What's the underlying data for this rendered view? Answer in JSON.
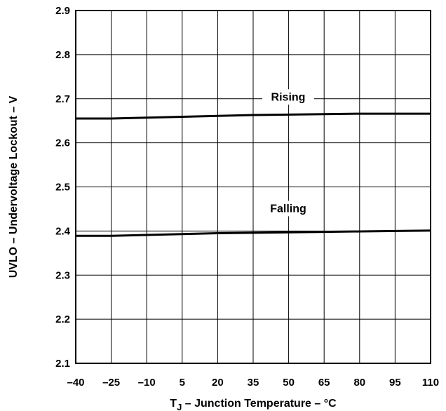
{
  "chart_data": {
    "type": "line",
    "xlabel_main": "T",
    "xlabel_sub": "J",
    "xlabel_rest": " – Junction Temperature – °C",
    "ylabel": "UVLO – Undervoltage Lockout – V",
    "x_ticks": [
      -40,
      -25,
      -10,
      5,
      20,
      35,
      50,
      65,
      80,
      95,
      110
    ],
    "x_tick_labels": [
      "–40",
      "–25",
      "–10",
      "5",
      "20",
      "35",
      "50",
      "65",
      "80",
      "95",
      "110"
    ],
    "y_ticks": [
      2.1,
      2.2,
      2.3,
      2.4,
      2.5,
      2.6,
      2.7,
      2.8,
      2.9
    ],
    "y_tick_labels": [
      "2.1",
      "2.2",
      "2.3",
      "2.4",
      "2.5",
      "2.6",
      "2.7",
      "2.8",
      "2.9"
    ],
    "xlim": [
      -40,
      110
    ],
    "ylim": [
      2.1,
      2.9
    ],
    "grid": true,
    "series": [
      {
        "name": "Rising",
        "x": [
          -40,
          -25,
          -10,
          5,
          20,
          35,
          50,
          65,
          80,
          95,
          110
        ],
        "y": [
          2.655,
          2.655,
          2.657,
          2.659,
          2.661,
          2.663,
          2.664,
          2.665,
          2.666,
          2.666,
          2.666
        ],
        "label_at": [
          35,
          2.696
        ]
      },
      {
        "name": "Falling",
        "x": [
          -40,
          -25,
          -10,
          5,
          20,
          35,
          50,
          65,
          80,
          95,
          110
        ],
        "y": [
          2.389,
          2.389,
          2.391,
          2.393,
          2.395,
          2.396,
          2.397,
          2.398,
          2.399,
          2.4,
          2.401
        ],
        "label_at": [
          35,
          2.443
        ]
      }
    ]
  }
}
